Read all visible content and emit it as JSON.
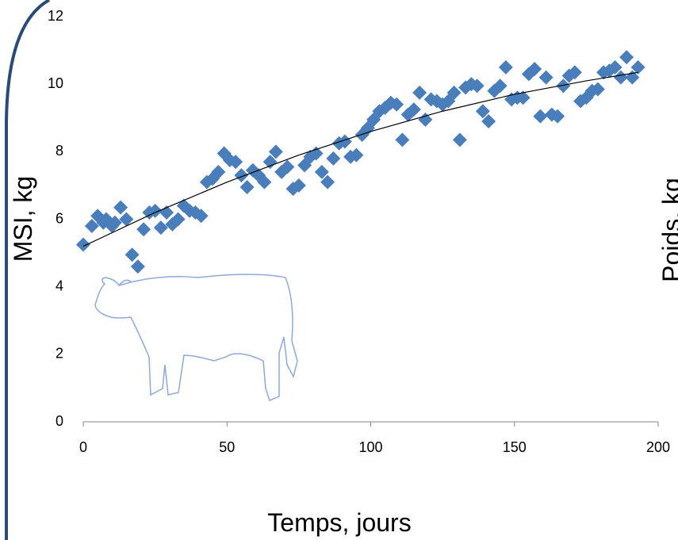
{
  "chart_data": {
    "type": "scatter",
    "x_label": "Temps, jours",
    "y_label": "MSI, kg",
    "y2_label": "Poids, kg",
    "xlim": [
      0,
      200
    ],
    "ylim": [
      0,
      12
    ],
    "xticks": [
      0,
      50,
      100,
      150,
      200
    ],
    "yticks": [
      0,
      2,
      4,
      6,
      8,
      10,
      12
    ],
    "grid": false,
    "series": [
      {
        "color": "#4a7ebb",
        "x": [
          0,
          3,
          5,
          7,
          8,
          10,
          11,
          13,
          15,
          17,
          19,
          21,
          23,
          25,
          27,
          29,
          31,
          33,
          35,
          37,
          39,
          41,
          43,
          45,
          47,
          49,
          51,
          53,
          55,
          57,
          59,
          61,
          63,
          65,
          67,
          69,
          71,
          73,
          75,
          77,
          79,
          81,
          83,
          85,
          87,
          89,
          91,
          93,
          95,
          97,
          99,
          101,
          103,
          105,
          107,
          109,
          111,
          113,
          115,
          117,
          119,
          121,
          123,
          125,
          127,
          129,
          131,
          133,
          135,
          137,
          139,
          141,
          143,
          145,
          147,
          149,
          151,
          153,
          155,
          157,
          159,
          161,
          163,
          165,
          167,
          169,
          171,
          173,
          175,
          177,
          179,
          181,
          183,
          185,
          187,
          189,
          191,
          193
        ],
        "values": [
          5.25,
          5.8,
          6.1,
          5.9,
          6.0,
          5.8,
          5.9,
          6.35,
          6.0,
          4.95,
          4.6,
          5.7,
          6.2,
          6.25,
          5.75,
          6.2,
          5.85,
          6.0,
          6.4,
          6.25,
          6.2,
          6.1,
          7.1,
          7.2,
          7.4,
          7.95,
          7.75,
          7.7,
          7.3,
          6.95,
          7.45,
          7.3,
          7.1,
          7.7,
          8.0,
          7.4,
          7.55,
          6.9,
          7.0,
          7.6,
          7.85,
          7.95,
          7.4,
          7.1,
          7.8,
          8.25,
          8.3,
          7.85,
          7.9,
          8.5,
          8.7,
          8.95,
          9.2,
          9.3,
          9.45,
          9.4,
          8.35,
          9.1,
          9.25,
          9.75,
          8.95,
          9.55,
          9.5,
          9.4,
          9.5,
          9.75,
          8.35,
          9.9,
          10.0,
          9.95,
          9.2,
          8.9,
          9.8,
          9.95,
          10.5,
          9.55,
          9.6,
          9.6,
          10.3,
          10.45,
          9.05,
          10.2,
          9.1,
          9.05,
          9.95,
          10.25,
          10.35,
          9.5,
          9.6,
          9.8,
          9.85,
          10.35,
          10.4,
          10.5,
          10.2,
          10.8,
          10.2,
          10.5
        ]
      }
    ],
    "trendline": {
      "color": "#000000",
      "x": [
        0,
        25,
        50,
        75,
        100,
        125,
        150,
        175,
        193
      ],
      "values": [
        5.2,
        6.2,
        7.1,
        7.9,
        8.6,
        9.2,
        9.7,
        10.1,
        10.35
      ]
    }
  }
}
